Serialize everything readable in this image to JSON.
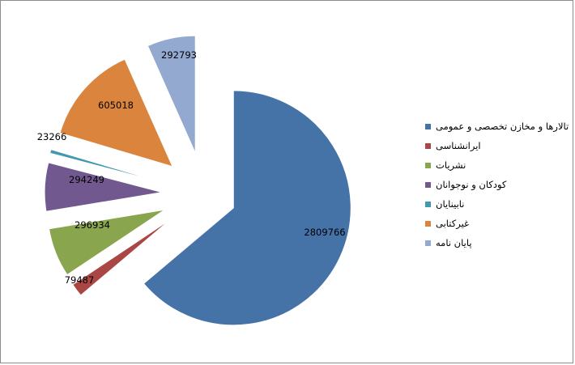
{
  "chart_data": {
    "type": "pie",
    "exploded": true,
    "legend_position": "right",
    "slices": [
      {
        "label": "تالارها و مخازن تخصصی و عمومی",
        "value": 2809766,
        "display": "2809766",
        "color": "#4572A7"
      },
      {
        "label": "ایرانشناسی",
        "value": 79487,
        "display": "79487",
        "color": "#AA4643"
      },
      {
        "label": "نشریات",
        "value": 296934,
        "display": "296934",
        "color": "#89A54E"
      },
      {
        "label": "کودکان و نوجوانان",
        "value": 294249,
        "display": "294249",
        "color": "#71588F"
      },
      {
        "label": "نابینایان",
        "value": 23266,
        "display": "23266",
        "color": "#4198AF"
      },
      {
        "label": "غیرکتابی",
        "value": 605018,
        "display": "605018",
        "color": "#DB843D"
      },
      {
        "label": "پایان نامه",
        "value": 292793,
        "display": "292793",
        "color": "#93A9CF"
      }
    ]
  }
}
